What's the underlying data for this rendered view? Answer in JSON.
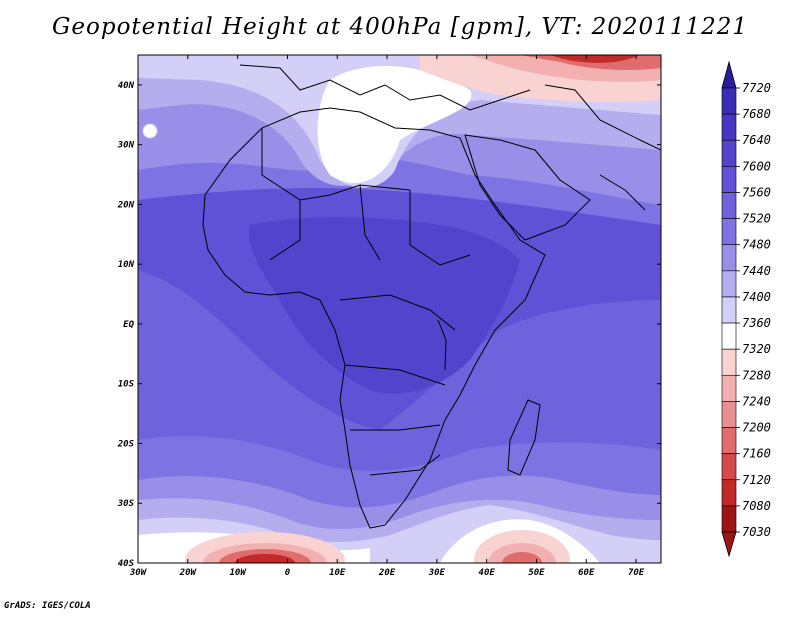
{
  "title": "Geopotential Height at 400hPa [gpm], VT: 2020111221",
  "credit": "GrADS: IGES/COLA",
  "map": {
    "lon_labels": [
      "30W",
      "20W",
      "10W",
      "0",
      "10E",
      "20E",
      "30E",
      "40E",
      "50E",
      "60E",
      "70E"
    ],
    "lat_labels": [
      "40N",
      "30N",
      "20N",
      "10N",
      "EQ",
      "10S",
      "20S",
      "30S",
      "40S"
    ],
    "lon_range": [
      -30,
      75
    ],
    "lat_range": [
      -40,
      45
    ]
  },
  "legend": {
    "levels": [
      "7720",
      "7680",
      "7640",
      "7600",
      "7560",
      "7520",
      "7480",
      "7440",
      "7400",
      "7360",
      "7320",
      "7280",
      "7240",
      "7200",
      "7160",
      "7120",
      "7080",
      "7030"
    ],
    "colors": [
      "#2a1d9c",
      "#3a2eb4",
      "#4537c4",
      "#5244cc",
      "#5f52d6",
      "#6e63dc",
      "#7d73e2",
      "#998fe8",
      "#b4adee",
      "#d3cff6",
      "#ffffff",
      "#f9d2d2",
      "#f2b0b0",
      "#ea8f8f",
      "#e06c6c",
      "#d44a4a",
      "#c22a2a",
      "#9e1414"
    ]
  }
}
